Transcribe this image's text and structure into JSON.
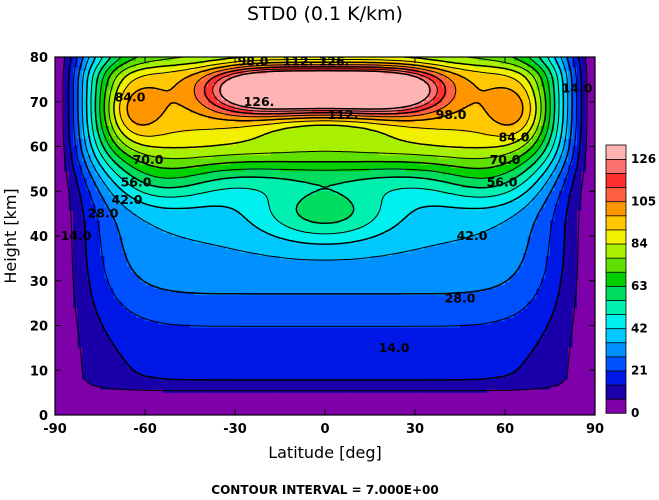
{
  "chart_data": {
    "type": "contour",
    "title": "STD0 (0.1 K/km)",
    "xlabel": "Latitude [deg]",
    "ylabel": "Height [km]",
    "xlim": [
      -90,
      90
    ],
    "ylim": [
      0,
      80
    ],
    "x_ticks": [
      -90,
      -60,
      -30,
      0,
      30,
      60,
      90
    ],
    "x_tick_labels": [
      "-90",
      "-60",
      "-30",
      "0",
      "30",
      "60",
      "90"
    ],
    "y_ticks": [
      0,
      10,
      20,
      30,
      40,
      50,
      60,
      70,
      80
    ],
    "y_tick_labels": [
      "0",
      "10",
      "20",
      "30",
      "40",
      "50",
      "60",
      "70",
      "80"
    ],
    "contour_interval": 7,
    "levels": [
      0,
      7,
      14,
      21,
      28,
      35,
      42,
      49,
      56,
      63,
      70,
      77,
      84,
      91,
      98,
      105,
      112,
      119,
      126,
      133
    ],
    "colorbar": {
      "labeled_values": [
        0,
        21,
        42,
        63,
        84,
        105,
        126
      ],
      "labels": [
        "0",
        "21",
        "42",
        "63",
        "84",
        "105",
        "126"
      ],
      "colors": [
        "#7e00a8",
        "#1a00a8",
        "#0018e6",
        "#0050ff",
        "#0090ff",
        "#00c8ff",
        "#00f0f0",
        "#00f0b0",
        "#00dc60",
        "#00d000",
        "#60e000",
        "#a8f000",
        "#f0f000",
        "#ffc800",
        "#ff9600",
        "#ff6040",
        "#ff3030",
        "#ff7070",
        "#ffb4b4"
      ]
    },
    "contour_labels": [
      {
        "text": "14.0",
        "lat": -83,
        "z": 40
      },
      {
        "text": "14.0",
        "lat": 23,
        "z": 15
      },
      {
        "text": "14.0",
        "lat": 84,
        "z": 73
      },
      {
        "text": "28.0",
        "lat": -74,
        "z": 45
      },
      {
        "text": "28.0",
        "lat": 45,
        "z": 26
      },
      {
        "text": "42.0",
        "lat": -66,
        "z": 48
      },
      {
        "text": "42.0",
        "lat": 49,
        "z": 40
      },
      {
        "text": "56.0",
        "lat": -63,
        "z": 52
      },
      {
        "text": "56.0",
        "lat": 59,
        "z": 52
      },
      {
        "text": "70.0",
        "lat": -59,
        "z": 57
      },
      {
        "text": "70.0",
        "lat": 60,
        "z": 57
      },
      {
        "text": "84.0",
        "lat": -65,
        "z": 71
      },
      {
        "text": "84.0",
        "lat": 63,
        "z": 62
      },
      {
        "text": "98.0",
        "lat": -24,
        "z": 79
      },
      {
        "text": "98.0",
        "lat": 42,
        "z": 67
      },
      {
        "text": "112.",
        "lat": -9,
        "z": 79
      },
      {
        "text": "112.",
        "lat": 6,
        "z": 67
      },
      {
        "text": "126.",
        "lat": 3,
        "z": 79
      },
      {
        "text": "126.",
        "lat": -22,
        "z": 70
      }
    ],
    "features": {
      "max_value_location": {
        "lat": 0,
        "z": 76
      },
      "secondary_max": {
        "lat": 0,
        "z": 45,
        "value": 63
      }
    },
    "footer": "CONTOUR INTERVAL = 7.000E+00"
  }
}
